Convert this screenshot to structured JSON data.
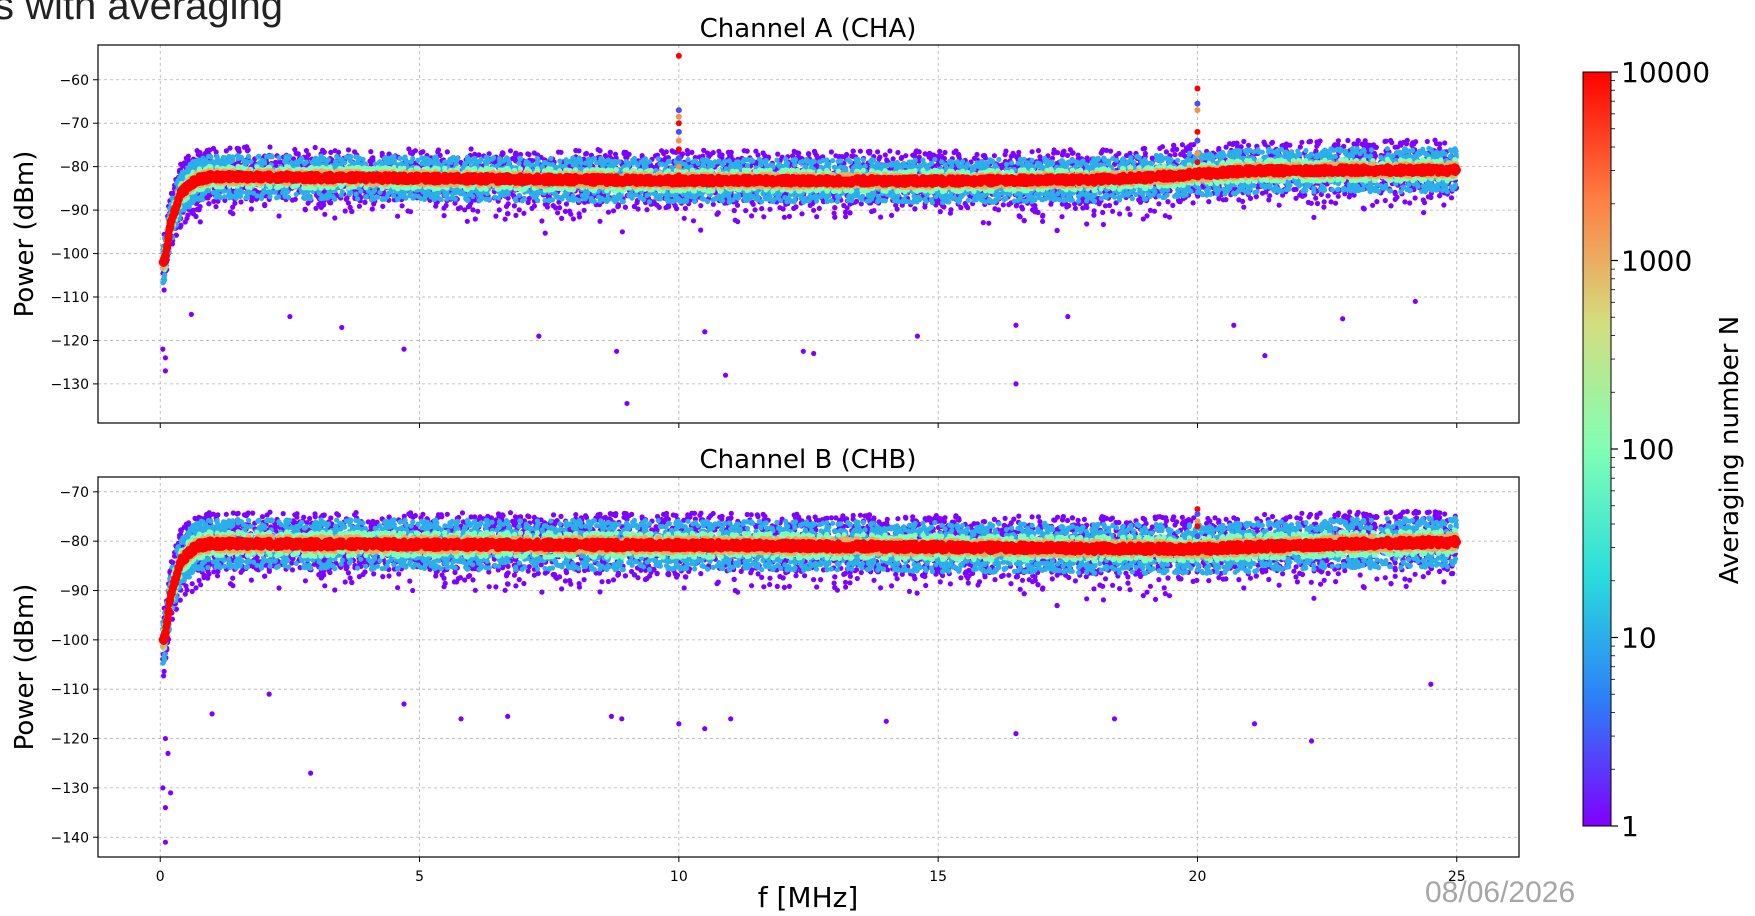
{
  "slide": {
    "title_fragment": "s with averaging",
    "date": "08/06/2026"
  },
  "chart_data": [
    {
      "type": "scatter",
      "title": "Channel A (CHA)",
      "xlabel": "",
      "ylabel": "Power (dBm)",
      "xlim": [
        -1.2,
        26.2
      ],
      "ylim": [
        -139,
        -52
      ],
      "x_ticks": [
        0,
        5,
        10,
        15,
        20,
        25
      ],
      "y_ticks": [
        -130,
        -120,
        -110,
        -100,
        -90,
        -80,
        -70,
        -60
      ],
      "x_tick_labels_visible": false,
      "grid": true,
      "colormap": "rainbow",
      "x_range_data": [
        0.05,
        25
      ],
      "mean_curve": {
        "x": [
          0.05,
          0.1,
          0.2,
          0.4,
          0.7,
          1,
          3,
          5,
          10,
          15,
          18,
          19,
          20,
          21,
          23,
          25
        ],
        "y": [
          -102,
          -101,
          -93,
          -86,
          -83,
          -82.3,
          -82.5,
          -82.7,
          -83.2,
          -83.3,
          -83,
          -82.5,
          -81.7,
          -81,
          -80.8,
          -80.8
        ]
      },
      "band": {
        "N10000": [
          -0.8,
          0.8
        ],
        "N1000": [
          -1.5,
          1.5
        ],
        "N100": [
          -2.5,
          2.5
        ],
        "N10": [
          -5,
          5
        ],
        "N1": [
          -8,
          7
        ]
      },
      "spikes": [
        {
          "x": 10,
          "values": [
            -54.5,
            -67,
            -68.5,
            -70,
            -72,
            -74,
            -76,
            -78,
            -80,
            -82
          ]
        },
        {
          "x": 20,
          "values": [
            -62,
            -65.5,
            -67,
            -72,
            -74,
            -77,
            -79
          ]
        }
      ],
      "outliers": [
        {
          "x": 0.1,
          "y": -127
        },
        {
          "x": 0.1,
          "y": -124
        },
        {
          "x": 0.05,
          "y": -122
        },
        {
          "x": 0.6,
          "y": -114
        },
        {
          "x": 2.5,
          "y": -114.5
        },
        {
          "x": 3.5,
          "y": -117
        },
        {
          "x": 4.7,
          "y": -122
        },
        {
          "x": 7.3,
          "y": -119
        },
        {
          "x": 8.8,
          "y": -122.5
        },
        {
          "x": 9,
          "y": -134.5
        },
        {
          "x": 10.5,
          "y": -118
        },
        {
          "x": 10.9,
          "y": -128
        },
        {
          "x": 12.4,
          "y": -122.5
        },
        {
          "x": 12.6,
          "y": -123
        },
        {
          "x": 14.6,
          "y": -119
        },
        {
          "x": 16.5,
          "y": -130
        },
        {
          "x": 16.5,
          "y": -116.5
        },
        {
          "x": 17.5,
          "y": -114.5
        },
        {
          "x": 20.7,
          "y": -116.5
        },
        {
          "x": 21.3,
          "y": -123.5
        },
        {
          "x": 22.8,
          "y": -115
        },
        {
          "x": 24.2,
          "y": -111
        }
      ]
    },
    {
      "type": "scatter",
      "title": "Channel B (CHB)",
      "xlabel": "f [MHz]",
      "ylabel": "Power (dBm)",
      "xlim": [
        -1.2,
        26.2
      ],
      "ylim": [
        -144,
        -67
      ],
      "x_ticks": [
        0,
        5,
        10,
        15,
        20,
        25
      ],
      "x_tick_labels": [
        "0",
        "5",
        "10",
        "15",
        "20",
        "25"
      ],
      "y_ticks": [
        -140,
        -130,
        -120,
        -110,
        -100,
        -90,
        -80,
        -70
      ],
      "grid": true,
      "colormap": "rainbow",
      "x_range_data": [
        0.05,
        25
      ],
      "mean_curve": {
        "x": [
          0.05,
          0.1,
          0.2,
          0.4,
          0.7,
          1,
          3,
          5,
          10,
          15,
          18,
          19,
          20,
          21,
          23,
          25
        ],
        "y": [
          -100,
          -99,
          -91,
          -84,
          -81,
          -80.5,
          -80.6,
          -80.7,
          -80.8,
          -81.2,
          -81.5,
          -81.5,
          -81.6,
          -81.2,
          -80.5,
          -80.2
        ]
      },
      "band": {
        "N10000": [
          -0.8,
          0.8
        ],
        "N1000": [
          -1.5,
          1.5
        ],
        "N100": [
          -2.5,
          2.5
        ],
        "N10": [
          -5,
          5
        ],
        "N1": [
          -8,
          6.5
        ]
      },
      "spikes": [
        {
          "x": 10,
          "values": [
            -80
          ]
        },
        {
          "x": 20,
          "values": [
            -73.5,
            -74.5,
            -76,
            -77,
            -79
          ]
        }
      ],
      "outliers": [
        {
          "x": 0.1,
          "y": -141
        },
        {
          "x": 0.1,
          "y": -134
        },
        {
          "x": 0.05,
          "y": -130
        },
        {
          "x": 0.2,
          "y": -131
        },
        {
          "x": 0.15,
          "y": -123
        },
        {
          "x": 0.1,
          "y": -120
        },
        {
          "x": 1,
          "y": -115
        },
        {
          "x": 2.1,
          "y": -111
        },
        {
          "x": 2.9,
          "y": -127
        },
        {
          "x": 4.7,
          "y": -113
        },
        {
          "x": 5.8,
          "y": -116
        },
        {
          "x": 6.7,
          "y": -115.5
        },
        {
          "x": 8.7,
          "y": -115.5
        },
        {
          "x": 8.9,
          "y": -116
        },
        {
          "x": 10,
          "y": -117
        },
        {
          "x": 10.5,
          "y": -118
        },
        {
          "x": 11,
          "y": -116
        },
        {
          "x": 14,
          "y": -116.5
        },
        {
          "x": 16.5,
          "y": -119
        },
        {
          "x": 18.4,
          "y": -116
        },
        {
          "x": 21.1,
          "y": -117
        },
        {
          "x": 22.2,
          "y": -120.5
        },
        {
          "x": 24.5,
          "y": -109
        }
      ]
    }
  ],
  "colorbar": {
    "label": "Averaging number N",
    "scale": "log",
    "range": [
      1,
      10000
    ],
    "tick_labels": [
      "10000",
      "1000",
      "100",
      "10",
      "1"
    ],
    "colors": [
      "#8000ff",
      "#2c7ef7",
      "#2adddd",
      "#81ffb4",
      "#d4dd80",
      "#ff7e41",
      "#ff0000"
    ]
  }
}
